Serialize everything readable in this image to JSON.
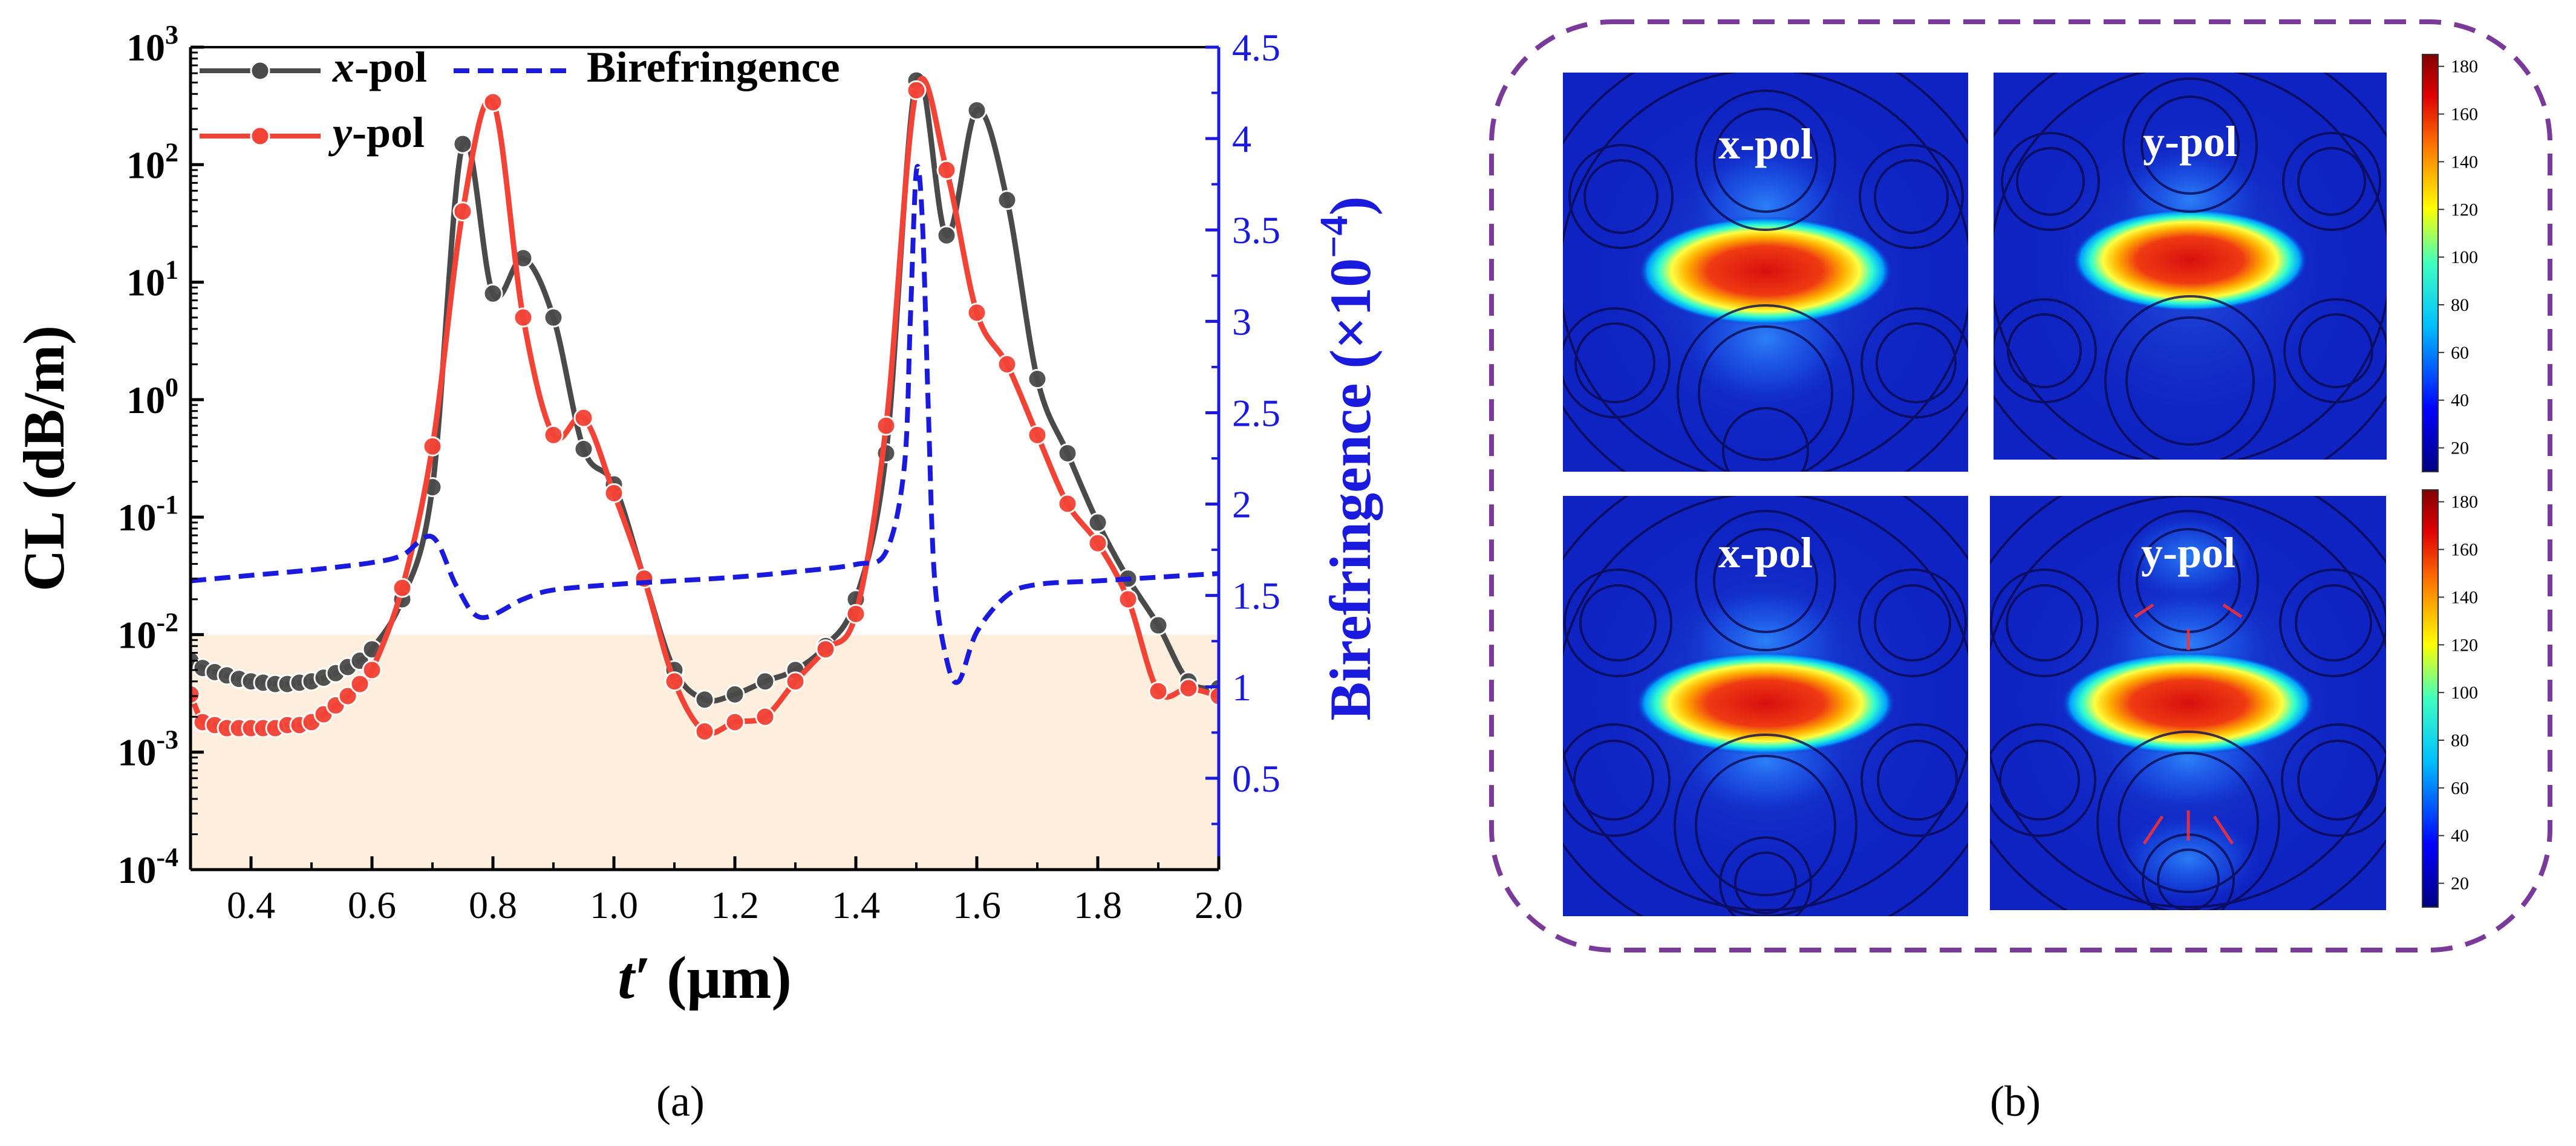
{
  "chart_data": {
    "type": "line",
    "title": "",
    "xlabel_main": "t",
    "xlabel_prime": "′",
    "xlabel_unit": " (μm)",
    "ylabel": "CL (dB/m)",
    "y2label_main": "Birefringence (×10",
    "y2label_exp": "−4",
    "y2label_end": ")",
    "x_range": [
      0.3,
      2.0
    ],
    "y_range_log": [
      0.0001,
      1000.0
    ],
    "y2_range": [
      0,
      4.5
    ],
    "x_ticks": [
      "0.4",
      "0.6",
      "0.8",
      "1.0",
      "1.2",
      "1.4",
      "1.6",
      "1.8",
      "2.0"
    ],
    "x_tick_values": [
      0.4,
      0.6,
      0.8,
      1.0,
      1.2,
      1.4,
      1.6,
      1.8,
      2.0
    ],
    "y_ticks": [
      {
        "exp": -4,
        "base": "10",
        "label": "-4"
      },
      {
        "exp": -3,
        "base": "10",
        "label": "-3"
      },
      {
        "exp": -2,
        "base": "10",
        "label": "-2"
      },
      {
        "exp": -1,
        "base": "10",
        "label": "-1"
      },
      {
        "exp": 0,
        "base": "10",
        "label": "0"
      },
      {
        "exp": 1,
        "base": "10",
        "label": "1"
      },
      {
        "exp": 2,
        "base": "10",
        "label": "2"
      },
      {
        "exp": 3,
        "base": "10",
        "label": "3"
      }
    ],
    "y2_ticks": [
      "0.5",
      "1",
      "1.5",
      "2",
      "2.5",
      "3",
      "3.5",
      "4",
      "4.5"
    ],
    "y2_tick_values": [
      0.5,
      1,
      1.5,
      2,
      2.5,
      3,
      3.5,
      4,
      4.5
    ],
    "shaded_band": {
      "y_from": 0.0001,
      "y_to": 0.01,
      "color": "#fdeedd"
    },
    "legend": [
      {
        "prefix": "x",
        "suffix": "-pol",
        "color": "#4a4a4a"
      },
      {
        "prefix": "y",
        "suffix": "-pol",
        "color": "#f24336"
      },
      {
        "prefix": "",
        "suffix": "Birefringence",
        "color": "#1a1adf"
      }
    ],
    "series": [
      {
        "name": "x-pol",
        "color": "#4a4a4a",
        "markers": true,
        "x": [
          0.3,
          0.32,
          0.34,
          0.36,
          0.38,
          0.4,
          0.42,
          0.44,
          0.46,
          0.48,
          0.5,
          0.52,
          0.54,
          0.56,
          0.58,
          0.6,
          0.65,
          0.7,
          0.75,
          0.8,
          0.85,
          0.9,
          0.95,
          1.0,
          1.05,
          1.1,
          1.15,
          1.2,
          1.25,
          1.3,
          1.35,
          1.4,
          1.45,
          1.5,
          1.55,
          1.6,
          1.65,
          1.7,
          1.75,
          1.8,
          1.85,
          1.9,
          1.95,
          2.0
        ],
        "y": [
          0.006,
          0.0052,
          0.0048,
          0.0045,
          0.0042,
          0.004,
          0.0039,
          0.0038,
          0.0038,
          0.0039,
          0.004,
          0.0043,
          0.0047,
          0.0053,
          0.006,
          0.0075,
          0.02,
          0.18,
          150,
          8,
          16,
          5,
          0.38,
          0.19,
          0.03,
          0.005,
          0.0028,
          0.0031,
          0.004,
          0.005,
          0.008,
          0.02,
          0.35,
          520,
          25,
          290,
          50,
          1.5,
          0.35,
          0.09,
          0.03,
          0.012,
          0.004,
          0.0035
        ]
      },
      {
        "name": "y-pol",
        "color": "#f24336",
        "markers": true,
        "x": [
          0.3,
          0.32,
          0.34,
          0.36,
          0.38,
          0.4,
          0.42,
          0.44,
          0.46,
          0.48,
          0.5,
          0.52,
          0.54,
          0.56,
          0.58,
          0.6,
          0.65,
          0.7,
          0.75,
          0.8,
          0.85,
          0.9,
          0.95,
          1.0,
          1.05,
          1.1,
          1.15,
          1.2,
          1.25,
          1.3,
          1.35,
          1.4,
          1.45,
          1.5,
          1.55,
          1.6,
          1.65,
          1.7,
          1.75,
          1.8,
          1.85,
          1.9,
          1.95,
          2.0
        ],
        "y": [
          0.0031,
          0.0018,
          0.0017,
          0.0016,
          0.0016,
          0.0016,
          0.0016,
          0.0016,
          0.0017,
          0.0017,
          0.0018,
          0.0021,
          0.0025,
          0.003,
          0.0038,
          0.005,
          0.025,
          0.4,
          40,
          340,
          5,
          0.5,
          0.7,
          0.16,
          0.03,
          0.004,
          0.0015,
          0.0018,
          0.002,
          0.004,
          0.0075,
          0.015,
          0.6,
          430,
          90,
          5.5,
          2,
          0.5,
          0.13,
          0.06,
          0.02,
          0.0033,
          0.0035,
          0.003
        ]
      },
      {
        "name": "Birefringence",
        "color": "#1a1adf",
        "axis": "right",
        "dashed": true,
        "x": [
          0.3,
          0.4,
          0.5,
          0.6,
          0.65,
          0.7,
          0.74,
          0.78,
          0.85,
          0.9,
          1.0,
          1.1,
          1.2,
          1.3,
          1.4,
          1.45,
          1.48,
          1.49,
          1.5,
          1.51,
          1.52,
          1.53,
          1.55,
          1.57,
          1.6,
          1.65,
          1.7,
          1.8,
          1.9,
          2.0
        ],
        "y": [
          1.58,
          1.61,
          1.64,
          1.68,
          1.72,
          1.82,
          1.55,
          1.38,
          1.48,
          1.53,
          1.56,
          1.58,
          1.6,
          1.63,
          1.67,
          1.74,
          2.2,
          3.0,
          3.82,
          3.55,
          2.5,
          1.6,
          1.15,
          1.03,
          1.3,
          1.5,
          1.56,
          1.58,
          1.6,
          1.62
        ]
      }
    ]
  },
  "captions": {
    "a": "(a)",
    "b": "(b)"
  },
  "mode_images": {
    "top_left": "x-pol",
    "top_right": "y-pol",
    "bottom_left": "x-pol",
    "bottom_right": "y-pol"
  },
  "colorbar": {
    "ticks": [
      "180",
      "160",
      "140",
      "120",
      "100",
      "80",
      "60",
      "40",
      "20"
    ],
    "tick_values": [
      180,
      160,
      140,
      120,
      100,
      80,
      60,
      40,
      20
    ],
    "range": [
      10,
      185
    ],
    "colors": [
      "#00007f",
      "#0000ff",
      "#00bfff",
      "#40ffc0",
      "#ffff00",
      "#ff8000",
      "#e00000",
      "#800000"
    ]
  },
  "colors": {
    "axis_blue": "#1a1adf",
    "frame_purple": "#7a3a9a",
    "mode_background": "#0e23c2",
    "hot_core": "#e23a10",
    "outline": "#0a0a50"
  }
}
